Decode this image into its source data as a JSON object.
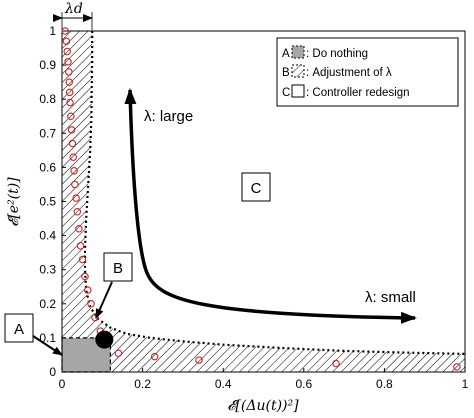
{
  "chart_data": {
    "type": "scatter",
    "xlabel": "𝓔[(Δu(t))²]",
    "ylabel": "𝓔[e²(t)]",
    "xlim": [
      0,
      1
    ],
    "ylim": [
      0,
      1
    ],
    "x_ticks": [
      "0",
      "0.2",
      "0.4",
      "0.6",
      "0.8",
      "1"
    ],
    "y_ticks": [
      "0",
      "0.1",
      "0.2",
      "0.3",
      "0.4",
      "0.5",
      "0.6",
      "0.7",
      "0.8",
      "0.9",
      "1"
    ],
    "grid": false,
    "lambda_d_label": "λd",
    "points": {
      "x": [
        0.008,
        0.011,
        0.013,
        0.015,
        0.017,
        0.018,
        0.019,
        0.02,
        0.022,
        0.024,
        0.026,
        0.028,
        0.03,
        0.032,
        0.035,
        0.038,
        0.042,
        0.046,
        0.051,
        0.057,
        0.064,
        0.072,
        0.082,
        0.095,
        0.11,
        0.14,
        0.23,
        0.34,
        0.68,
        0.98
      ],
      "y": [
        1.0,
        0.97,
        0.94,
        0.91,
        0.88,
        0.85,
        0.82,
        0.79,
        0.75,
        0.71,
        0.67,
        0.63,
        0.59,
        0.55,
        0.51,
        0.47,
        0.42,
        0.37,
        0.33,
        0.28,
        0.24,
        0.2,
        0.16,
        0.12,
        0.085,
        0.055,
        0.045,
        0.035,
        0.025,
        0.015
      ],
      "color": "#cc2222"
    },
    "boundary": {
      "x": [
        0.075,
        0.075,
        0.074,
        0.073,
        0.07,
        0.065,
        0.06,
        0.057,
        0.057,
        0.06,
        0.07,
        0.09,
        0.12,
        0.16,
        0.22,
        0.3,
        0.4,
        0.55,
        0.7,
        0.85,
        1.0
      ],
      "y": [
        1.0,
        0.93,
        0.85,
        0.75,
        0.65,
        0.55,
        0.45,
        0.36,
        0.3,
        0.24,
        0.19,
        0.155,
        0.13,
        0.112,
        0.1,
        0.09,
        0.08,
        0.07,
        0.062,
        0.057,
        0.053
      ]
    },
    "region_A": {
      "x": [
        0,
        0.12
      ],
      "y": [
        0,
        0.1
      ],
      "color": "#a6a6a6"
    },
    "dot": {
      "x": 0.105,
      "y": 0.095
    },
    "legend": {
      "position": "top-right",
      "entries": [
        {
          "marker": "A",
          "label": "Do nothing",
          "style": "filled-gray"
        },
        {
          "marker": "B",
          "label": "Adjustment of λ",
          "style": "hatched"
        },
        {
          "marker": "C",
          "label": "Controller redesign",
          "style": "empty"
        }
      ]
    },
    "annotations": {
      "label_A": "A",
      "label_B": "B",
      "label_C": "C",
      "lambda_large": "λ: large",
      "lambda_small": "λ: small"
    }
  }
}
